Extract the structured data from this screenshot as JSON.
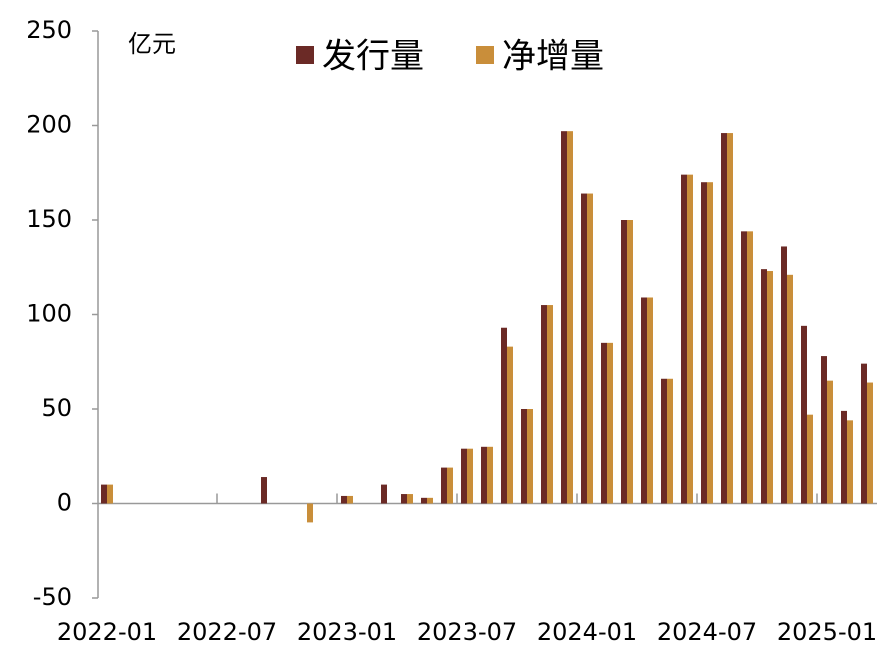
{
  "chart_data": {
    "type": "bar",
    "unit": "亿元",
    "categories": [
      "2022-01",
      null,
      null,
      null,
      null,
      null,
      "2022-07",
      null,
      null,
      null,
      null,
      null,
      "2023-01",
      null,
      null,
      null,
      null,
      null,
      "2023-07",
      null,
      null,
      null,
      null,
      null,
      "2024-01",
      null,
      null,
      null,
      null,
      null,
      "2024-07",
      null,
      null,
      null,
      null,
      null,
      "2025-01",
      null,
      null
    ],
    "series": [
      {
        "name": "发行量",
        "color": "#6b2a26",
        "values": [
          10,
          0,
          0,
          0,
          0,
          0,
          0,
          0,
          14,
          0,
          0,
          0,
          4,
          0,
          10,
          5,
          3,
          19,
          29,
          30,
          93,
          50,
          105,
          197,
          164,
          85,
          150,
          109,
          66,
          174,
          170,
          196,
          144,
          124,
          136,
          94,
          78,
          49,
          74
        ]
      },
      {
        "name": "净增量",
        "color": "#c98e3a",
        "values": [
          10,
          0,
          0,
          0,
          0,
          0,
          0,
          0,
          0,
          0,
          -10,
          0,
          4,
          0,
          0,
          5,
          3,
          19,
          29,
          30,
          83,
          50,
          105,
          197,
          164,
          85,
          150,
          109,
          66,
          174,
          170,
          196,
          144,
          123,
          121,
          47,
          65,
          44,
          64
        ]
      }
    ],
    "ylim": [
      -50,
      250
    ],
    "yticks": [
      -50,
      0,
      50,
      100,
      150,
      200,
      250
    ],
    "grid": false
  }
}
